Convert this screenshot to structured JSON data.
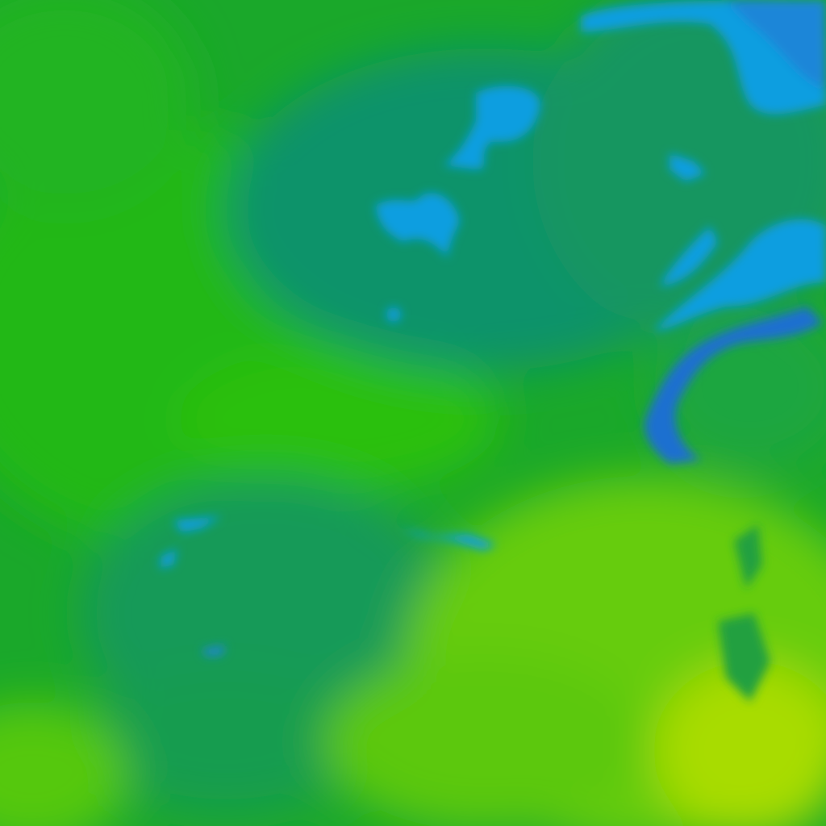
{
  "map": {
    "type": "temperature-raster-tile",
    "palette": {
      "cold_dark": "#1f6fd0",
      "cold": "#0d9ee0",
      "cool_teal": "#10936a",
      "green_dark": "#14a030",
      "green": "#22bb12",
      "green_light": "#55cc0a",
      "yellow_green": "#99d800",
      "yellow": "#b8e000"
    }
  }
}
